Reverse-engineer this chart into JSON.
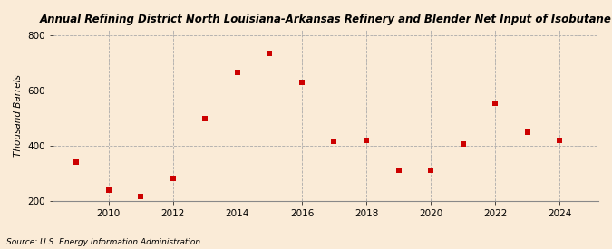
{
  "title": "Annual Refining District North Louisiana-Arkansas Refinery and Blender Net Input of Isobutane",
  "ylabel": "Thousand Barrels",
  "source": "Source: U.S. Energy Information Administration",
  "background_color": "#faebd7",
  "plot_bg_color": "#faebd7",
  "marker_color": "#cc0000",
  "marker": "s",
  "marker_size": 16,
  "grid_color": "#aaaaaa",
  "grid_style": "--",
  "years": [
    2009,
    2010,
    2011,
    2012,
    2013,
    2014,
    2015,
    2016,
    2017,
    2018,
    2019,
    2020,
    2021,
    2022,
    2023,
    2024
  ],
  "values": [
    340,
    240,
    215,
    280,
    500,
    665,
    735,
    630,
    415,
    420,
    310,
    310,
    405,
    555,
    450,
    420
  ],
  "ylim": [
    200,
    820
  ],
  "yticks": [
    200,
    400,
    600,
    800
  ],
  "xticks": [
    2010,
    2012,
    2014,
    2016,
    2018,
    2020,
    2022,
    2024
  ],
  "xlim": [
    2008.3,
    2025.2
  ],
  "title_fontsize": 8.5,
  "ylabel_fontsize": 7.5,
  "tick_fontsize": 7.5,
  "source_fontsize": 6.5
}
